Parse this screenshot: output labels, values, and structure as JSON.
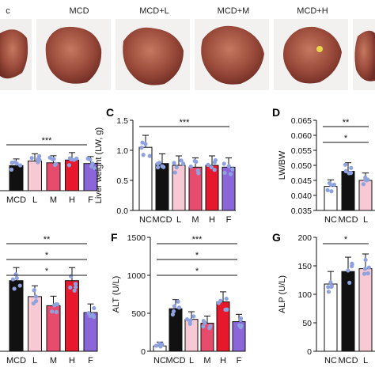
{
  "photos": {
    "labels": [
      "c",
      "MCD",
      "MCD+L",
      "MCD+M",
      "MCD+H",
      "M"
    ]
  },
  "panels": {
    "C": {
      "letter": "C"
    },
    "D": {
      "letter": "D"
    },
    "F": {
      "letter": "F"
    },
    "G": {
      "letter": "G"
    }
  },
  "chart_data": [
    {
      "id": "B-partial",
      "type": "bar",
      "categories": [
        "MCD",
        "L",
        "M",
        "H",
        "F"
      ],
      "colors": [
        "#111111",
        "#f7c9d4",
        "#e84c6c",
        "#e8182c",
        "#8a66d8"
      ],
      "values": [
        0.72,
        0.85,
        0.8,
        0.88,
        0.78
      ],
      "significance": [
        "***"
      ]
    },
    {
      "id": "C",
      "type": "bar",
      "ylabel": "Liver weight (LW, g)",
      "ylim": [
        0.0,
        1.5
      ],
      "yticks": [
        "0.0",
        "0.5",
        "1.0",
        "1.5"
      ],
      "categories": [
        "NC",
        "MCD",
        "L",
        "M",
        "H",
        "F"
      ],
      "colors": [
        "#ffffff",
        "#111111",
        "#f7c9d4",
        "#e84c6c",
        "#e8182c",
        "#8a66d8"
      ],
      "values": [
        1.05,
        0.78,
        0.75,
        0.72,
        0.75,
        0.72
      ],
      "significance": [
        "***"
      ]
    },
    {
      "id": "D",
      "type": "bar",
      "ylabel": "LW/BW",
      "ylim": [
        0.035,
        0.065
      ],
      "yticks": [
        "0.035",
        "0.040",
        "0.045",
        "0.050",
        "0.055",
        "0.060",
        "0.065"
      ],
      "categories": [
        "NC",
        "MCD",
        "L"
      ],
      "colors": [
        "#ffffff",
        "#111111",
        "#f7c9d4"
      ],
      "values": [
        0.043,
        0.048,
        0.045
      ],
      "significance": [
        "**",
        "*"
      ]
    },
    {
      "id": "E-partial",
      "type": "bar",
      "categories": [
        "MCD",
        "L",
        "M",
        "H",
        "F"
      ],
      "colors": [
        "#111111",
        "#f7c9d4",
        "#e84c6c",
        "#e8182c",
        "#8a66d8"
      ],
      "values": [
        0.62,
        0.48,
        0.4,
        0.62,
        0.34
      ],
      "significance": [
        "**",
        "*",
        "*"
      ]
    },
    {
      "id": "F",
      "type": "bar",
      "ylabel": "ALT (U/L)",
      "ylim": [
        0,
        1500
      ],
      "yticks": [
        "0",
        "500",
        "1000",
        "1500"
      ],
      "categories": [
        "NC",
        "MCD",
        "L",
        "M",
        "H",
        "F"
      ],
      "colors": [
        "#ffffff",
        "#111111",
        "#f7c9d4",
        "#e84c6c",
        "#e8182c",
        "#8a66d8"
      ],
      "values": [
        70,
        560,
        420,
        370,
        650,
        390
      ],
      "significance": [
        "***",
        "*",
        "*"
      ]
    },
    {
      "id": "G",
      "type": "bar",
      "ylabel": "ALP (U/L)",
      "ylim": [
        0,
        200
      ],
      "yticks": [
        "0",
        "50",
        "100",
        "150",
        "200"
      ],
      "categories": [
        "NC",
        "MCD",
        "L"
      ],
      "colors": [
        "#ffffff",
        "#111111",
        "#f7c9d4"
      ],
      "values": [
        118,
        140,
        145
      ],
      "significance": [
        "*"
      ]
    }
  ]
}
